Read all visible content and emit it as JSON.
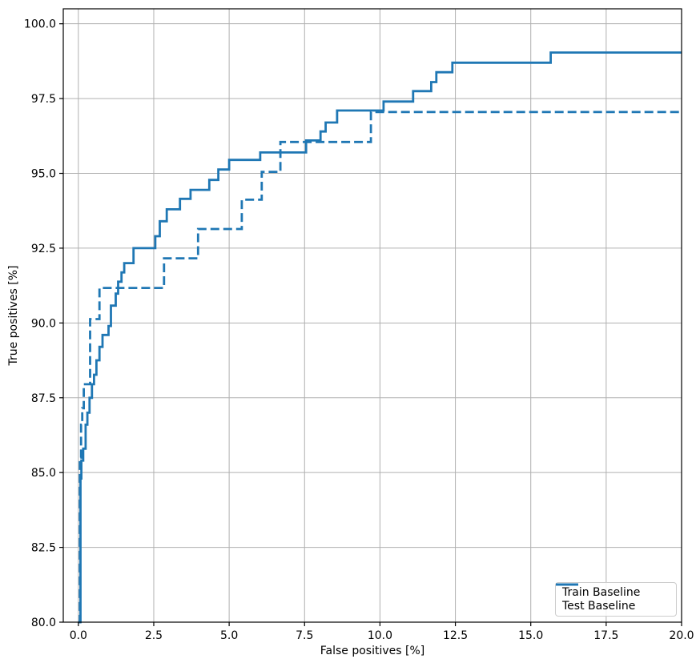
{
  "chart_data": {
    "type": "line",
    "title": "",
    "xlabel": "False positives [%]",
    "ylabel": "True positives [%]",
    "xlim": [
      -0.5,
      20
    ],
    "ylim": [
      80,
      100.5
    ],
    "xticks": [
      0.0,
      2.5,
      5.0,
      7.5,
      10.0,
      12.5,
      15.0,
      17.5,
      20.0
    ],
    "xtick_labels": [
      "0.0",
      "2.5",
      "5.0",
      "7.5",
      "10.0",
      "12.5",
      "15.0",
      "17.5",
      "20.0"
    ],
    "yticks": [
      80.0,
      82.5,
      85.0,
      87.5,
      90.0,
      92.5,
      95.0,
      97.5,
      100.0
    ],
    "ytick_labels": [
      "80.0",
      "82.5",
      "85.0",
      "87.5",
      "90.0",
      "92.5",
      "95.0",
      "97.5",
      "100.0"
    ],
    "grid": true,
    "grid_color": "#b0b0b0",
    "axis_color": "#000000",
    "line_color": "#1f77b4",
    "legend_position": "lower right",
    "series": [
      {
        "name": "Train Baseline",
        "style": "solid",
        "drawstyle": "steps-post",
        "points": [
          [
            0.0,
            80.0
          ],
          [
            0.07,
            84.8
          ],
          [
            0.1,
            85.4
          ],
          [
            0.16,
            85.8
          ],
          [
            0.24,
            86.6
          ],
          [
            0.3,
            87.0
          ],
          [
            0.37,
            87.5
          ],
          [
            0.45,
            87.95
          ],
          [
            0.52,
            88.27
          ],
          [
            0.6,
            88.75
          ],
          [
            0.7,
            89.2
          ],
          [
            0.8,
            89.6
          ],
          [
            1.0,
            89.9
          ],
          [
            1.08,
            90.58
          ],
          [
            1.24,
            90.98
          ],
          [
            1.32,
            91.38
          ],
          [
            1.43,
            91.69
          ],
          [
            1.52,
            92.0
          ],
          [
            1.83,
            92.5
          ],
          [
            2.55,
            92.9
          ],
          [
            2.7,
            93.4
          ],
          [
            2.93,
            93.8
          ],
          [
            3.37,
            94.15
          ],
          [
            3.72,
            94.45
          ],
          [
            4.34,
            94.78
          ],
          [
            4.64,
            95.13
          ],
          [
            5.0,
            95.45
          ],
          [
            6.03,
            95.7
          ],
          [
            7.55,
            96.1
          ],
          [
            8.03,
            96.4
          ],
          [
            8.2,
            96.7
          ],
          [
            8.58,
            97.1
          ],
          [
            10.12,
            97.4
          ],
          [
            11.1,
            97.75
          ],
          [
            11.7,
            98.05
          ],
          [
            11.87,
            98.38
          ],
          [
            12.4,
            98.7
          ],
          [
            15.66,
            99.04
          ]
        ]
      },
      {
        "name": "Test Baseline",
        "style": "dashed",
        "drawstyle": "steps-post",
        "points": [
          [
            0.0,
            80.0
          ],
          [
            0.05,
            85.5
          ],
          [
            0.09,
            86.6
          ],
          [
            0.13,
            87.15
          ],
          [
            0.18,
            87.95
          ],
          [
            0.39,
            90.13
          ],
          [
            0.7,
            91.17
          ],
          [
            2.84,
            92.16
          ],
          [
            3.97,
            93.14
          ],
          [
            5.42,
            94.12
          ],
          [
            6.08,
            95.05
          ],
          [
            6.7,
            96.05
          ],
          [
            9.7,
            97.05
          ]
        ]
      }
    ]
  }
}
